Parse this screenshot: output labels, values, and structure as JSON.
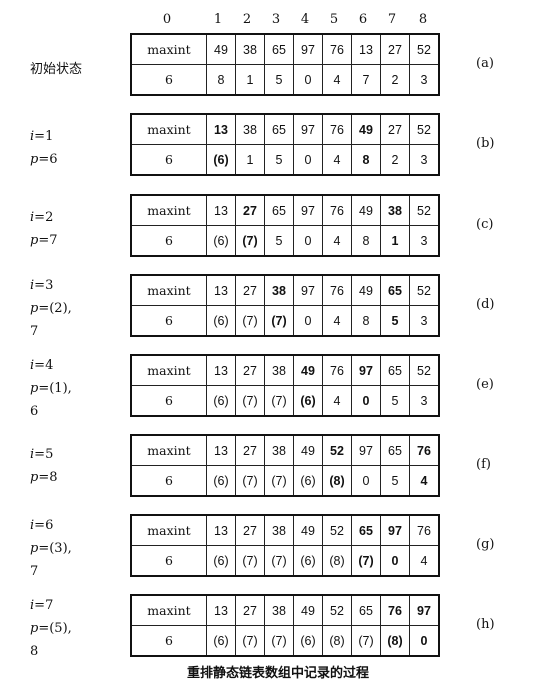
{
  "header": [
    "0",
    "1",
    "2",
    "3",
    "4",
    "5",
    "6",
    "7",
    "8"
  ],
  "states": [
    {
      "label": [
        "初始状态"
      ],
      "tag": "(a)",
      "row1": [
        {
          "v": "maxint"
        },
        {
          "v": "49"
        },
        {
          "v": "38"
        },
        {
          "v": "65"
        },
        {
          "v": "97"
        },
        {
          "v": "76"
        },
        {
          "v": "13"
        },
        {
          "v": "27"
        },
        {
          "v": "52"
        }
      ],
      "row2": [
        {
          "v": "6"
        },
        {
          "v": "8"
        },
        {
          "v": "1"
        },
        {
          "v": "5"
        },
        {
          "v": "0"
        },
        {
          "v": "4"
        },
        {
          "v": "7"
        },
        {
          "v": "2"
        },
        {
          "v": "3"
        }
      ]
    },
    {
      "label": [
        "i=1",
        "p=6"
      ],
      "tag": "(b)",
      "row1": [
        {
          "v": "maxint"
        },
        {
          "v": "13",
          "b": true
        },
        {
          "v": "38"
        },
        {
          "v": "65"
        },
        {
          "v": "97"
        },
        {
          "v": "76"
        },
        {
          "v": "49",
          "b": true
        },
        {
          "v": "27"
        },
        {
          "v": "52"
        }
      ],
      "row2": [
        {
          "v": "6"
        },
        {
          "v": "(6)",
          "b": true
        },
        {
          "v": "1"
        },
        {
          "v": "5"
        },
        {
          "v": "0"
        },
        {
          "v": "4"
        },
        {
          "v": "8",
          "b": true
        },
        {
          "v": "2"
        },
        {
          "v": "3"
        }
      ]
    },
    {
      "label": [
        "i=2",
        "p=7"
      ],
      "tag": "(c)",
      "row1": [
        {
          "v": "maxint"
        },
        {
          "v": "13"
        },
        {
          "v": "27",
          "b": true
        },
        {
          "v": "65"
        },
        {
          "v": "97"
        },
        {
          "v": "76"
        },
        {
          "v": "49"
        },
        {
          "v": "38",
          "b": true
        },
        {
          "v": "52"
        }
      ],
      "row2": [
        {
          "v": "6"
        },
        {
          "v": "(6)"
        },
        {
          "v": "(7)",
          "b": true
        },
        {
          "v": "5"
        },
        {
          "v": "0"
        },
        {
          "v": "4"
        },
        {
          "v": "8"
        },
        {
          "v": "1",
          "b": true
        },
        {
          "v": "3"
        }
      ]
    },
    {
      "label": [
        "i=3",
        "p=(2),",
        "7"
      ],
      "tag": "(d)",
      "row1": [
        {
          "v": "maxint"
        },
        {
          "v": "13"
        },
        {
          "v": "27"
        },
        {
          "v": "38",
          "b": true
        },
        {
          "v": "97"
        },
        {
          "v": "76"
        },
        {
          "v": "49"
        },
        {
          "v": "65",
          "b": true
        },
        {
          "v": "52"
        }
      ],
      "row2": [
        {
          "v": "6"
        },
        {
          "v": "(6)"
        },
        {
          "v": "(7)"
        },
        {
          "v": "(7)",
          "b": true
        },
        {
          "v": "0"
        },
        {
          "v": "4"
        },
        {
          "v": "8"
        },
        {
          "v": "5",
          "b": true
        },
        {
          "v": "3"
        }
      ]
    },
    {
      "label": [
        "i=4",
        "p=(1),",
        "6"
      ],
      "tag": "(e)",
      "row1": [
        {
          "v": "maxint"
        },
        {
          "v": "13"
        },
        {
          "v": "27"
        },
        {
          "v": "38"
        },
        {
          "v": "49",
          "b": true
        },
        {
          "v": "76"
        },
        {
          "v": "97",
          "b": true
        },
        {
          "v": "65"
        },
        {
          "v": "52"
        }
      ],
      "row2": [
        {
          "v": "6"
        },
        {
          "v": "(6)"
        },
        {
          "v": "(7)"
        },
        {
          "v": "(7)"
        },
        {
          "v": "(6)",
          "b": true
        },
        {
          "v": "4"
        },
        {
          "v": "0",
          "b": true
        },
        {
          "v": "5"
        },
        {
          "v": "3"
        }
      ]
    },
    {
      "label": [
        "i=5",
        "p=8"
      ],
      "tag": "(f)",
      "row1": [
        {
          "v": "maxint"
        },
        {
          "v": "13"
        },
        {
          "v": "27"
        },
        {
          "v": "38"
        },
        {
          "v": "49"
        },
        {
          "v": "52",
          "b": true
        },
        {
          "v": "97"
        },
        {
          "v": "65"
        },
        {
          "v": "76",
          "b": true
        }
      ],
      "row2": [
        {
          "v": "6"
        },
        {
          "v": "(6)"
        },
        {
          "v": "(7)"
        },
        {
          "v": "(7)"
        },
        {
          "v": "(6)"
        },
        {
          "v": "(8)",
          "b": true
        },
        {
          "v": "0"
        },
        {
          "v": "5"
        },
        {
          "v": "4",
          "b": true
        }
      ]
    },
    {
      "label": [
        "i=6",
        "p=(3),",
        "7"
      ],
      "tag": "(g)",
      "row1": [
        {
          "v": "maxint"
        },
        {
          "v": "13"
        },
        {
          "v": "27"
        },
        {
          "v": "38"
        },
        {
          "v": "49"
        },
        {
          "v": "52"
        },
        {
          "v": "65",
          "b": true
        },
        {
          "v": "97",
          "b": true
        },
        {
          "v": "76"
        }
      ],
      "row2": [
        {
          "v": "6"
        },
        {
          "v": "(6)"
        },
        {
          "v": "(7)"
        },
        {
          "v": "(7)"
        },
        {
          "v": "(6)"
        },
        {
          "v": "(8)"
        },
        {
          "v": "(7)",
          "b": true
        },
        {
          "v": "0",
          "b": true
        },
        {
          "v": "4"
        }
      ]
    },
    {
      "label": [
        "i=7",
        "p=(5),",
        "8"
      ],
      "tag": "(h)",
      "row1": [
        {
          "v": "maxint"
        },
        {
          "v": "13"
        },
        {
          "v": "27"
        },
        {
          "v": "38"
        },
        {
          "v": "49"
        },
        {
          "v": "52"
        },
        {
          "v": "65"
        },
        {
          "v": "76",
          "b": true
        },
        {
          "v": "97",
          "b": true
        }
      ],
      "row2": [
        {
          "v": "6"
        },
        {
          "v": "(6)"
        },
        {
          "v": "(7)"
        },
        {
          "v": "(7)"
        },
        {
          "v": "(6)"
        },
        {
          "v": "(8)"
        },
        {
          "v": "(7)"
        },
        {
          "v": "(8)",
          "b": true
        },
        {
          "v": "0",
          "b": true
        }
      ]
    }
  ],
  "caption": "重排静态链表数组中记录的过程"
}
